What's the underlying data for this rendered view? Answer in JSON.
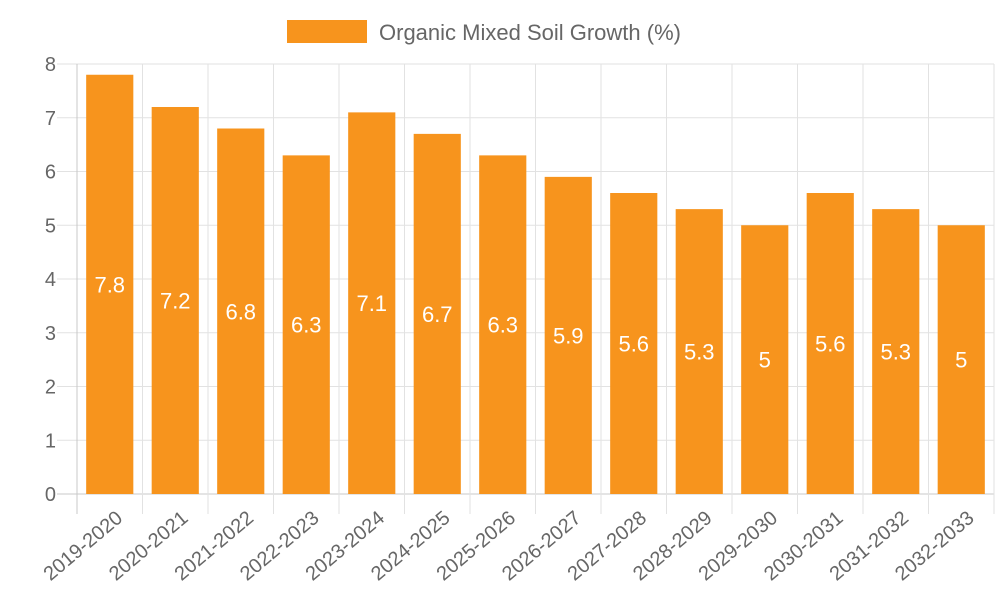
{
  "chart_data": {
    "type": "bar",
    "categories": [
      "2019-2020",
      "2020-2021",
      "2021-2022",
      "2022-2023",
      "2023-2024",
      "2024-2025",
      "2025-2026",
      "2026-2027",
      "2027-2028",
      "2028-2029",
      "2029-2030",
      "2030-2031",
      "2031-2032",
      "2032-2033"
    ],
    "series": [
      {
        "name": "Organic Mixed Soil Growth (%)",
        "values": [
          7.8,
          7.2,
          6.8,
          6.3,
          7.1,
          6.7,
          6.3,
          5.9,
          5.6,
          5.3,
          5,
          5.6,
          5.3,
          5
        ],
        "color": "#f7941d"
      }
    ],
    "ylim": [
      0,
      8
    ],
    "yticks": [
      0,
      1,
      2,
      3,
      4,
      5,
      6,
      7,
      8
    ],
    "grid": true,
    "legend": "top",
    "data_labels": true,
    "title": "",
    "xlabel": "",
    "ylabel": ""
  }
}
